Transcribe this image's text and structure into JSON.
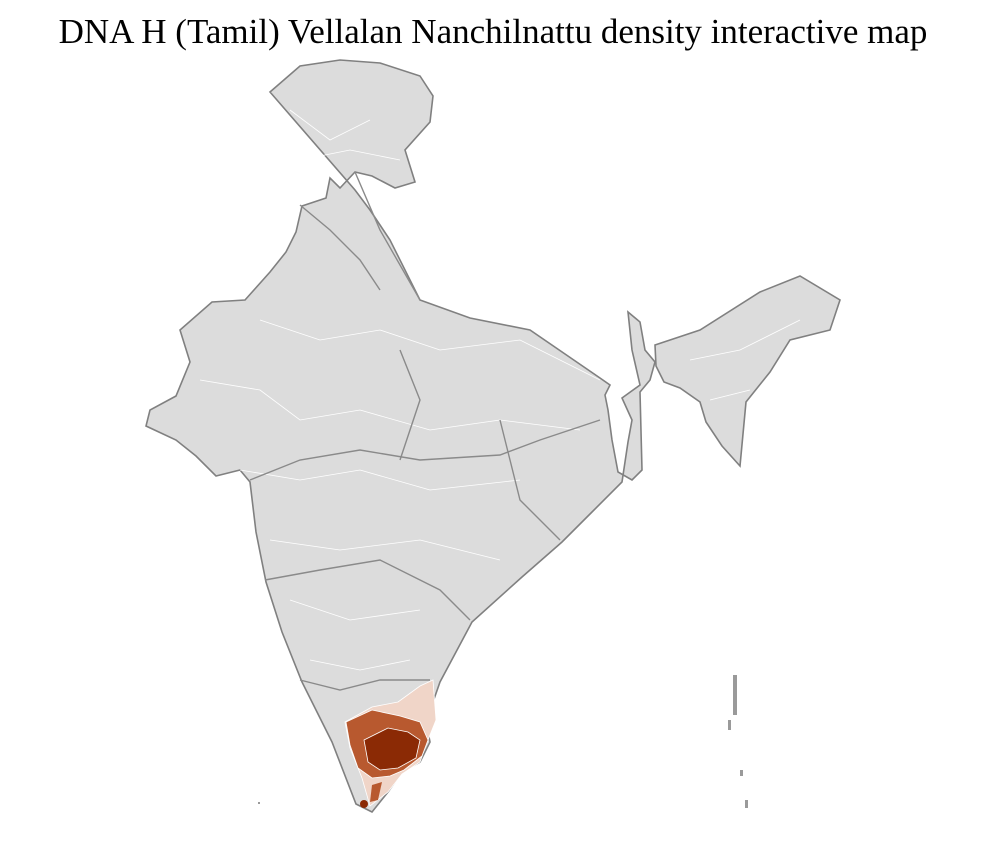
{
  "title": "DNA H (Tamil) Vellalan Nanchilnattu density interactive map",
  "map": {
    "region": "India districts",
    "base_color": "#dcdcdc",
    "border_color": "#808080",
    "density_colors": {
      "low": "#f0d5c8",
      "medium": "#b8592f",
      "high": "#8b2a05"
    },
    "highlighted_state": "Tamil Nadu"
  }
}
